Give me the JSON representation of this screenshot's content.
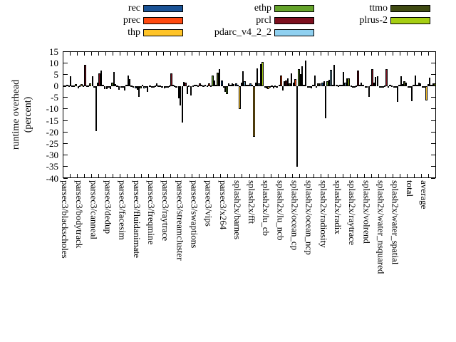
{
  "figure": {
    "y_axis_title_line1": "runtime overhead",
    "y_axis_title_line2": "(percent)"
  },
  "chart_data": {
    "type": "bar",
    "title": "",
    "xlabel": "",
    "ylabel": "runtime overhead (percent)",
    "ylim": [
      -40,
      15
    ],
    "ytick_interval": 5,
    "ytick_labels": [
      "15",
      "10",
      "5",
      "0",
      "-5",
      "-10",
      "-15",
      "-20",
      "-25",
      "-30",
      "-35",
      "-40"
    ],
    "grid": false,
    "legend_position": "top-center, 3 columns",
    "bar_outline_color": "#000000",
    "categories": [
      "parsec3/blackscholes",
      "parsec3/bodytrack",
      "parsec3/canneal",
      "parsec3/dedup",
      "parsec3/facesim",
      "parsec3/fluidanimate",
      "parsec3/freqmine",
      "parsec3/raytrace",
      "parsec3/streamcluster",
      "parsec3/swaptions",
      "parsec3/vips",
      "parsec3/x264",
      "splash2x/barnes",
      "splash2x/fft",
      "splash2x/lu_cb",
      "splash2x/lu_ncb",
      "splash2x/ocean_cp",
      "splash2x/ocean_ncp",
      "splash2x/radiosity",
      "splash2x/radix",
      "splash2x/raytrace",
      "splash2x/volrend",
      "splash2x/water_nsquared",
      "splash2x/water_spatial",
      "total",
      "average"
    ],
    "series": [
      {
        "name": "rec",
        "color": "#1a5396",
        "values": [
          0.3,
          -1.2,
          4.2,
          -1.3,
          -0.5,
          -1.2,
          0.3,
          -1.2,
          -5.4,
          0.3,
          0.2,
          2.4,
          1.0,
          1.0,
          -0.8,
          0.4,
          1.5,
          -0.5,
          1.5,
          0.4,
          0.2,
          -0.5,
          -0.3,
          -0.8,
          -0.5,
          -0.4
        ]
      },
      {
        "name": "prec",
        "color": "#ff4a10",
        "values": [
          0.2,
          0.2,
          -0.3,
          -0.4,
          -0.2,
          -1.8,
          -0.3,
          -0.3,
          -8.5,
          0.5,
          1.0,
          -0.5,
          0.5,
          0.5,
          -1.2,
          4.5,
          2.8,
          -0.3,
          2.0,
          0.3,
          -0.3,
          -0.3,
          -0.5,
          -0.3,
          -0.3,
          -0.3
        ]
      },
      {
        "name": "thp",
        "color": "#ffc428",
        "values": [
          0.5,
          0.8,
          -19.5,
          -1.5,
          -2.0,
          -4.8,
          -0.8,
          -0.5,
          -16.0,
          0.6,
          0.3,
          -2.5,
          -10.0,
          -22.0,
          -1.5,
          -2.0,
          -35.0,
          -1.2,
          -14.0,
          0.5,
          -0.8,
          -4.9,
          -0.6,
          -7.0,
          -6.5,
          -6.3
        ]
      },
      {
        "name": "ethp",
        "color": "#64a32a",
        "values": [
          0.3,
          0.2,
          1.5,
          1.3,
          0.5,
          -1.0,
          0.2,
          0.2,
          1.8,
          0.3,
          4.5,
          -3.6,
          1.5,
          1.5,
          -0.8,
          2.0,
          7.2,
          0.5,
          2.0,
          0.5,
          0.3,
          0.4,
          0.3,
          0.5,
          0.5,
          0.8
        ]
      },
      {
        "name": "prcl",
        "color": "#7d0f1e",
        "values": [
          4.2,
          9.0,
          5.5,
          6.0,
          4.5,
          0.5,
          1.2,
          5.5,
          1.5,
          1.2,
          2.2,
          1.0,
          6.5,
          7.5,
          0.3,
          2.2,
          5.0,
          4.5,
          2.5,
          6.0,
          6.6,
          7.2,
          7.2,
          4.2,
          4.5,
          3.6
        ]
      },
      {
        "name": "pdarc_v4_2_2",
        "color": "#8fd0f0",
        "values": [
          0.3,
          0.3,
          6.8,
          0.8,
          2.8,
          -1.2,
          0.3,
          0.4,
          -3.4,
          0.4,
          0.4,
          0.5,
          2.0,
          1.0,
          -1.0,
          3.3,
          8.4,
          -0.4,
          7.0,
          1.5,
          0.4,
          1.5,
          -0.5,
          0.8,
          0.5,
          0.5
        ]
      },
      {
        "name": "ttmo",
        "color": "#3f4a12",
        "values": [
          0.2,
          0.2,
          0.4,
          0.3,
          0.2,
          -0.2,
          0.2,
          0.3,
          0.3,
          0.3,
          5.7,
          1.0,
          0.5,
          9.5,
          0.2,
          1.2,
          0.5,
          1.0,
          0.5,
          3.2,
          1.5,
          3.8,
          0.5,
          2.0,
          1.5,
          1.2
        ]
      },
      {
        "name": "plrus-2",
        "color": "#a6ce13",
        "values": [
          0.7,
          1.0,
          -1.5,
          -1.6,
          -0.8,
          -2.5,
          -0.8,
          -0.4,
          -4.3,
          0.6,
          7.2,
          0.8,
          0.5,
          10.3,
          -0.8,
          5.5,
          11.0,
          1.0,
          9.0,
          3.3,
          0.5,
          4.2,
          0.3,
          1.5,
          1.0,
          1.0
        ]
      }
    ]
  },
  "legend": {
    "entries": [
      {
        "label": "rec",
        "col": 0,
        "row": 0
      },
      {
        "label": "prec",
        "col": 0,
        "row": 1
      },
      {
        "label": "thp",
        "col": 0,
        "row": 2
      },
      {
        "label": "ethp",
        "col": 1,
        "row": 0
      },
      {
        "label": "prcl",
        "col": 1,
        "row": 1
      },
      {
        "label": "pdarc_v4_2_2",
        "col": 1,
        "row": 2
      },
      {
        "label": "ttmo",
        "col": 2,
        "row": 0
      },
      {
        "label": "plrus-2",
        "col": 2,
        "row": 1
      }
    ]
  }
}
